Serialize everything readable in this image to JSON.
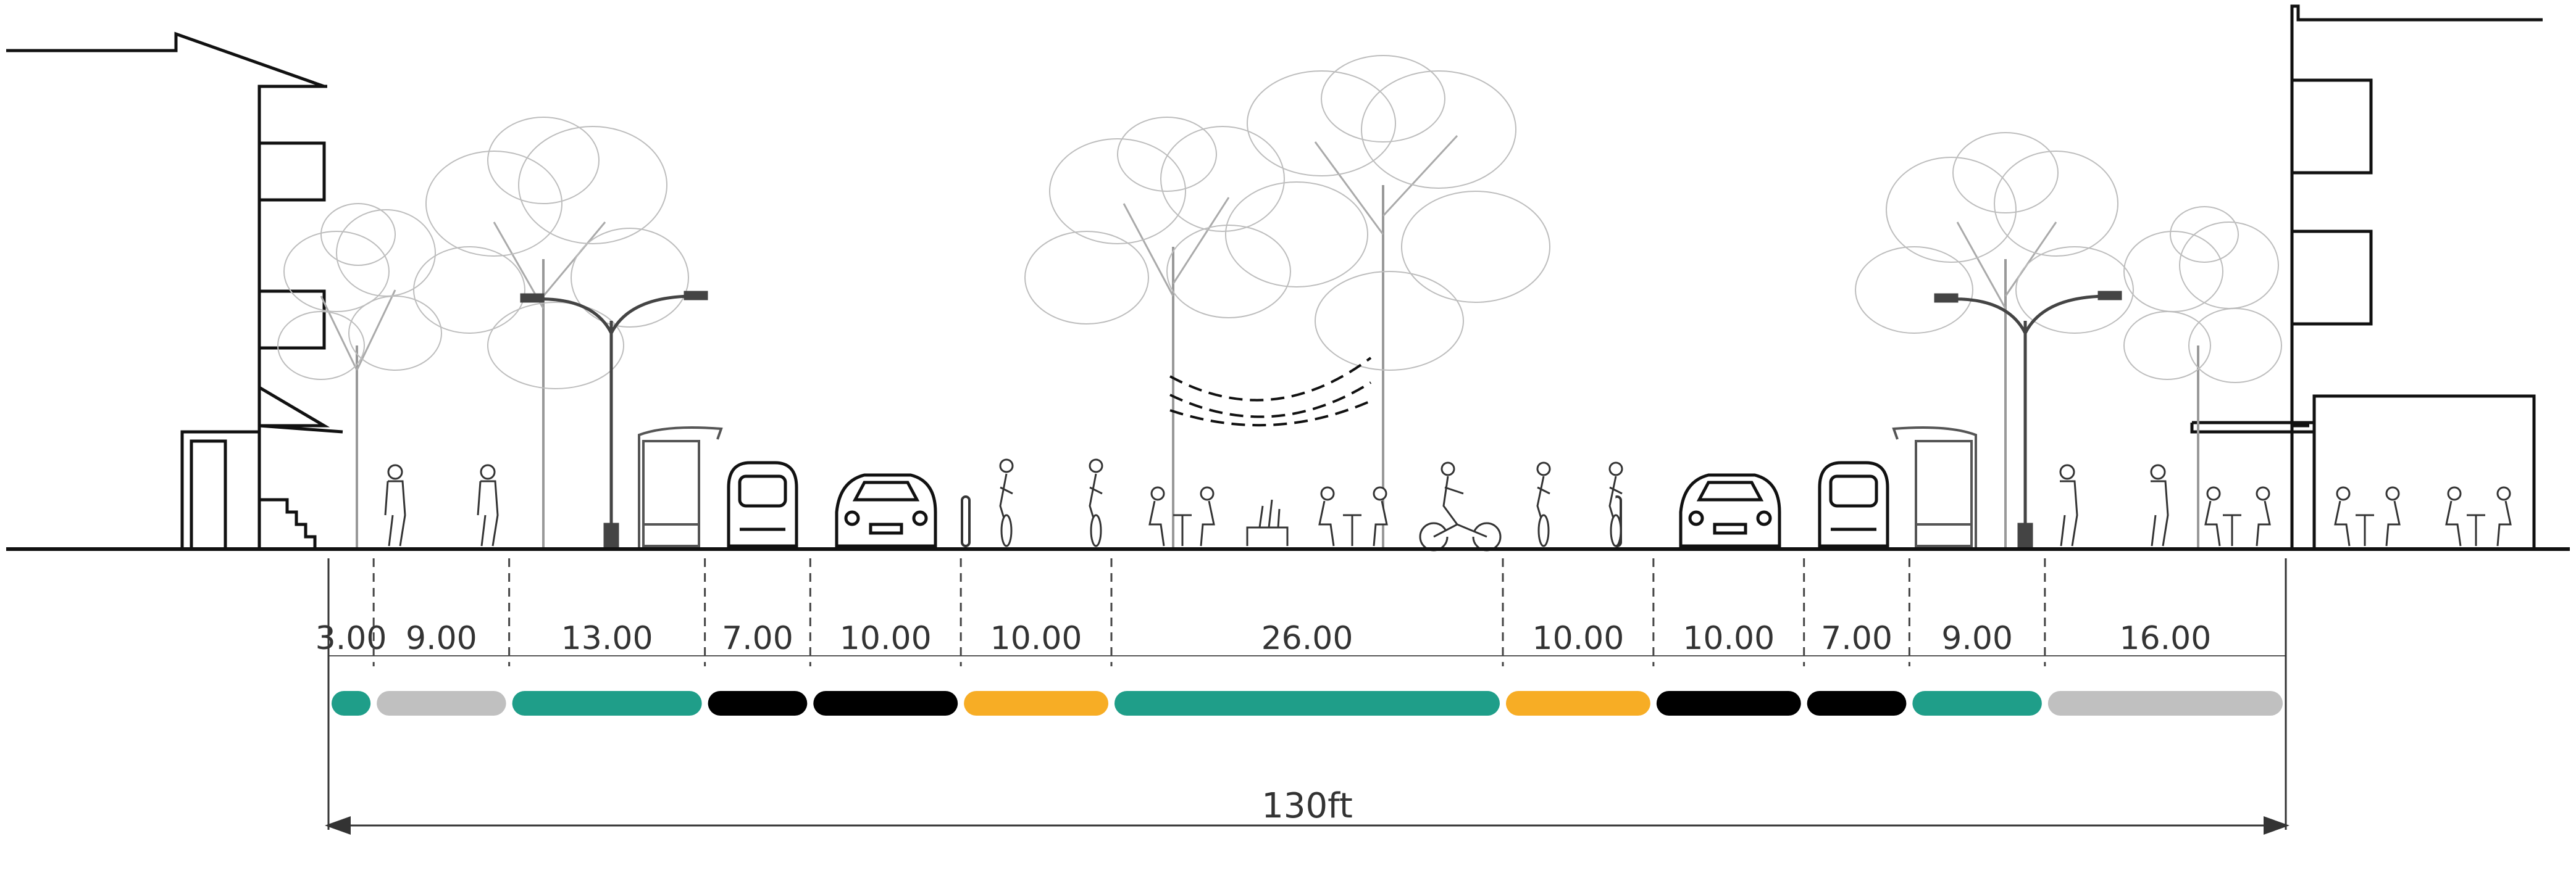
{
  "total": {
    "label": "130ft",
    "feet": 130
  },
  "segments": [
    {
      "label": "3.00",
      "feet": 3,
      "color": "#1f9e89",
      "use": "buffer"
    },
    {
      "label": "9.00",
      "feet": 9,
      "color": "#c0c0c0",
      "use": "sidewalk"
    },
    {
      "label": "13.00",
      "feet": 13,
      "color": "#1f9e89",
      "use": "tree-lawn"
    },
    {
      "label": "7.00",
      "feet": 7,
      "color": "#000000",
      "use": "transit-lane"
    },
    {
      "label": "10.00",
      "feet": 10,
      "color": "#000000",
      "use": "travel-lane"
    },
    {
      "label": "10.00",
      "feet": 10,
      "color": "#f7ad25",
      "use": "bike-lane"
    },
    {
      "label": "26.00",
      "feet": 26,
      "color": "#1f9e89",
      "use": "median-plaza"
    },
    {
      "label": "10.00",
      "feet": 10,
      "color": "#f7ad25",
      "use": "bike-lane"
    },
    {
      "label": "10.00",
      "feet": 10,
      "color": "#000000",
      "use": "travel-lane"
    },
    {
      "label": "7.00",
      "feet": 7,
      "color": "#000000",
      "use": "transit-lane"
    },
    {
      "label": "9.00",
      "feet": 9,
      "color": "#1f9e89",
      "use": "tree-lawn"
    },
    {
      "label": "16.00",
      "feet": 16,
      "color": "#c0c0c0",
      "use": "sidewalk"
    }
  ],
  "colors": {
    "green": "#1f9e89",
    "gray": "#c0c0c0",
    "black": "#000000",
    "orange": "#f7ad25",
    "line": "#111111"
  }
}
